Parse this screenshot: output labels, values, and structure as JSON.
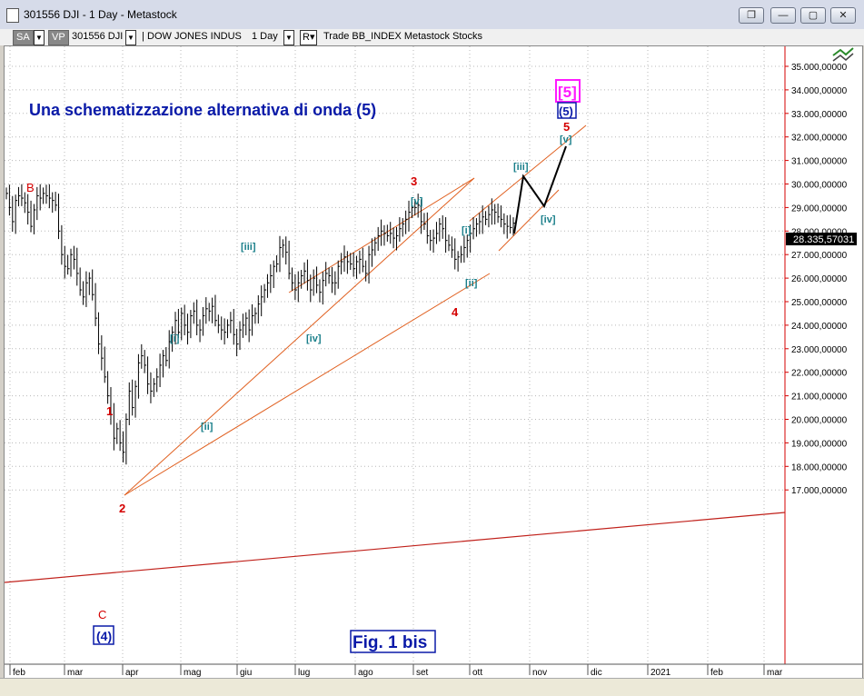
{
  "window": {
    "title": "301556 DJI - 1 Day - Metastock",
    "buttons": [
      "restore-icon",
      "minimize-icon",
      "maximize-icon",
      "close-icon"
    ]
  },
  "toolbar": {
    "sa_label": "SA",
    "vp_label": "VP",
    "symbol": "301556 DJI",
    "instrument": "DOW JONES INDUS",
    "period": "1 Day",
    "r_label": "R",
    "info": "Trade  BB_INDEX  Metastock  Stocks"
  },
  "chart": {
    "headline": "Una schematizzazione alternativa di onda (5)",
    "fig_label": "Fig. 1 bis",
    "price_tag": "28.335,57031",
    "y_ticks": [
      "35.000,00000",
      "34.000,00000",
      "33.000,00000",
      "32.000,00000",
      "31.000,00000",
      "30.000,00000",
      "29.000,00000",
      "28.000,00000",
      "27.000,00000",
      "26.000,00000",
      "25.000,00000",
      "24.000,00000",
      "23.000,00000",
      "22.000,00000",
      "21.000,00000",
      "20.000,00000",
      "19.000,00000",
      "18.000,00000",
      "17.000,00000"
    ],
    "x_ticks": [
      "feb",
      "mar",
      "apr",
      "mag",
      "giu",
      "lug",
      "ago",
      "set",
      "ott",
      "nov",
      "dic",
      "2021",
      "feb",
      "mar"
    ],
    "labels": {
      "B": "B",
      "C": "C",
      "w4": "(4)",
      "r1": "1",
      "r2": "2",
      "r3": "3",
      "r4": "4",
      "r5": "5",
      "i1": "[i]",
      "ii1": "[ii]",
      "iii1": "[iii]",
      "iv1": "[iv]",
      "v1": "[v]",
      "i2": "[i]",
      "ii2": "[ii]",
      "iii2": "[iii]",
      "iv2": "[iv]",
      "v2": "[v]",
      "w5": "(5)",
      "big5": "[5]"
    },
    "colors": {
      "red_label": "#d40000",
      "teal_label": "#1a7f8a",
      "navy": "#0a1aa8",
      "magenta": "#ff1aff",
      "channel": "#e06020",
      "trendline": "#c0201a"
    },
    "series": [
      29600,
      29000,
      28400,
      29300,
      29500,
      29400,
      29200,
      28800,
      28200,
      28900,
      29500,
      29400,
      29600,
      29500,
      29400,
      29300,
      29100,
      28000,
      27000,
      26500,
      26400,
      27000,
      26800,
      26200,
      25500,
      25200,
      25800,
      26000,
      25300,
      24300,
      23200,
      22600,
      21800,
      21000,
      20200,
      19200,
      19600,
      19000,
      18600,
      20000,
      21200,
      20500,
      21400,
      22400,
      22700,
      22300,
      21500,
      21200,
      21500,
      21800,
      22300,
      22700,
      22500,
      23300,
      23700,
      24200,
      23700,
      24500,
      24000,
      23700,
      24400,
      24600,
      24000,
      23800,
      24400,
      24700,
      24600,
      24800,
      24200,
      24000,
      23800,
      23700,
      24000,
      24200,
      23600,
      23200,
      23800,
      24000,
      24300,
      23800,
      24400,
      24500,
      24900,
      25200,
      25500,
      25800,
      26100,
      26500,
      26600,
      27300,
      27400,
      27100,
      26200,
      25800,
      25500,
      25800,
      26100,
      26300,
      25900,
      25500,
      26000,
      25700,
      25400,
      25900,
      26200,
      26100,
      25800,
      25800,
      26500,
      26700,
      26900,
      26700,
      26600,
      26400,
      26700,
      26800,
      26500,
      26200,
      27000,
      27200,
      27500,
      27800,
      28000,
      27900,
      27800,
      27900,
      27700,
      27800,
      28100,
      28300,
      28500,
      28800,
      29000,
      29000,
      29100,
      28400,
      28300,
      27800,
      27600,
      27700,
      27900,
      28300,
      28100,
      27600,
      27400,
      27200,
      26800,
      26900,
      27000,
      27300,
      27600,
      27900,
      28100,
      28300,
      28400,
      28600,
      28500,
      28700,
      28900,
      28800,
      28600,
      28500,
      28300,
      28200,
      28150,
      28335
    ]
  }
}
